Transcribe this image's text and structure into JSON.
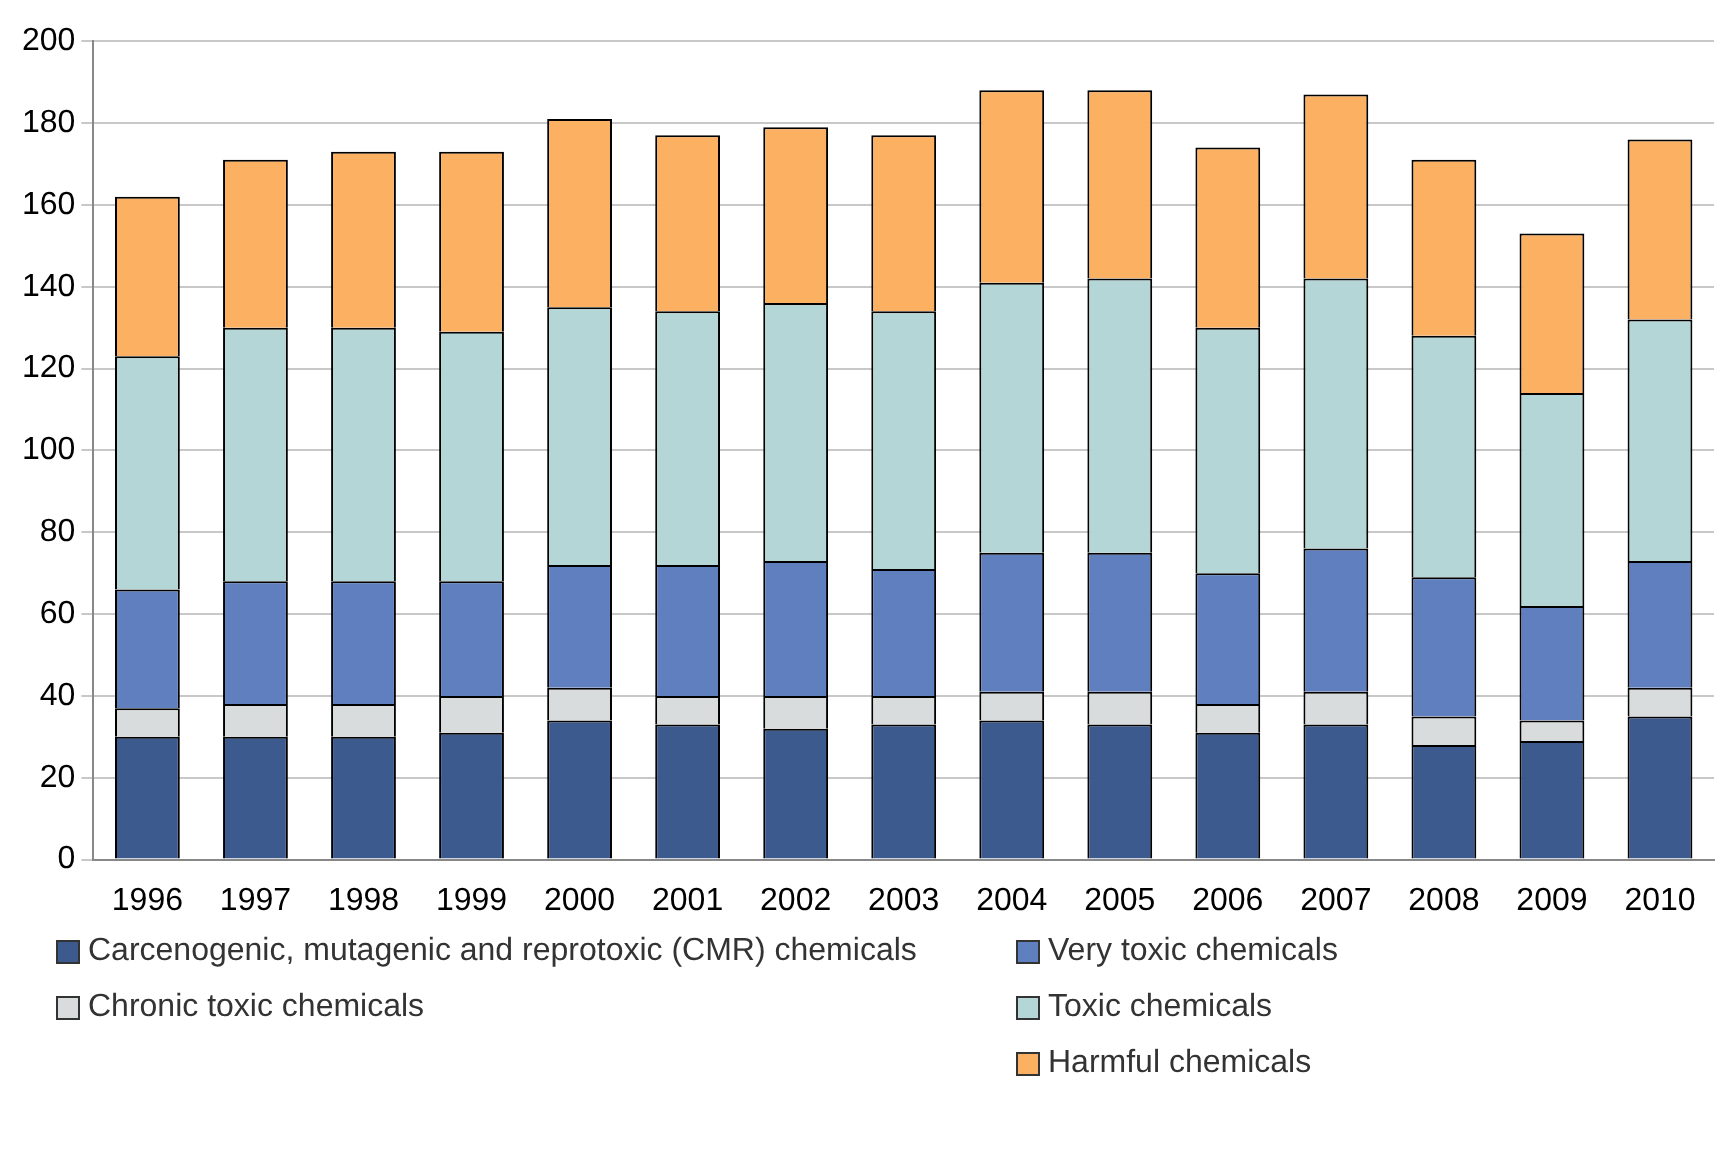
{
  "chart_data": {
    "type": "bar",
    "stacked": true,
    "categories": [
      "1996",
      "1997",
      "1998",
      "1999",
      "2000",
      "2001",
      "2002",
      "2003",
      "2004",
      "2005",
      "2006",
      "2007",
      "2008",
      "2009",
      "2010"
    ],
    "series": [
      {
        "name": "Carcenogenic, mutagenic and reprotoxic (CMR) chemicals",
        "color": "#3d5a8f",
        "values": [
          30,
          30,
          30,
          31,
          34,
          33,
          32,
          33,
          34,
          33,
          31,
          33,
          28,
          29,
          35
        ]
      },
      {
        "name": "Chronic toxic chemicals",
        "color": "#d9dcdc",
        "values": [
          7,
          8,
          8,
          9,
          8,
          7,
          8,
          7,
          7,
          8,
          7,
          8,
          7,
          5,
          7
        ]
      },
      {
        "name": "Very toxic chemicals",
        "color": "#5f7fbf",
        "values": [
          29,
          30,
          30,
          28,
          30,
          32,
          33,
          31,
          34,
          34,
          32,
          35,
          34,
          28,
          31
        ]
      },
      {
        "name": "Toxic chemicals",
        "color": "#b4d6d6",
        "values": [
          57,
          62,
          62,
          61,
          63,
          62,
          63,
          63,
          66,
          67,
          60,
          66,
          59,
          52,
          59
        ]
      },
      {
        "name": "Harmful chemicals",
        "color": "#fbb062",
        "values": [
          39,
          41,
          43,
          44,
          46,
          43,
          43,
          43,
          47,
          46,
          44,
          45,
          43,
          39,
          44
        ]
      }
    ],
    "ylim": [
      0,
      200
    ],
    "yticks": [
      0,
      20,
      40,
      60,
      80,
      100,
      120,
      140,
      160,
      180,
      200
    ],
    "grid": "y",
    "legend": "bottom"
  }
}
